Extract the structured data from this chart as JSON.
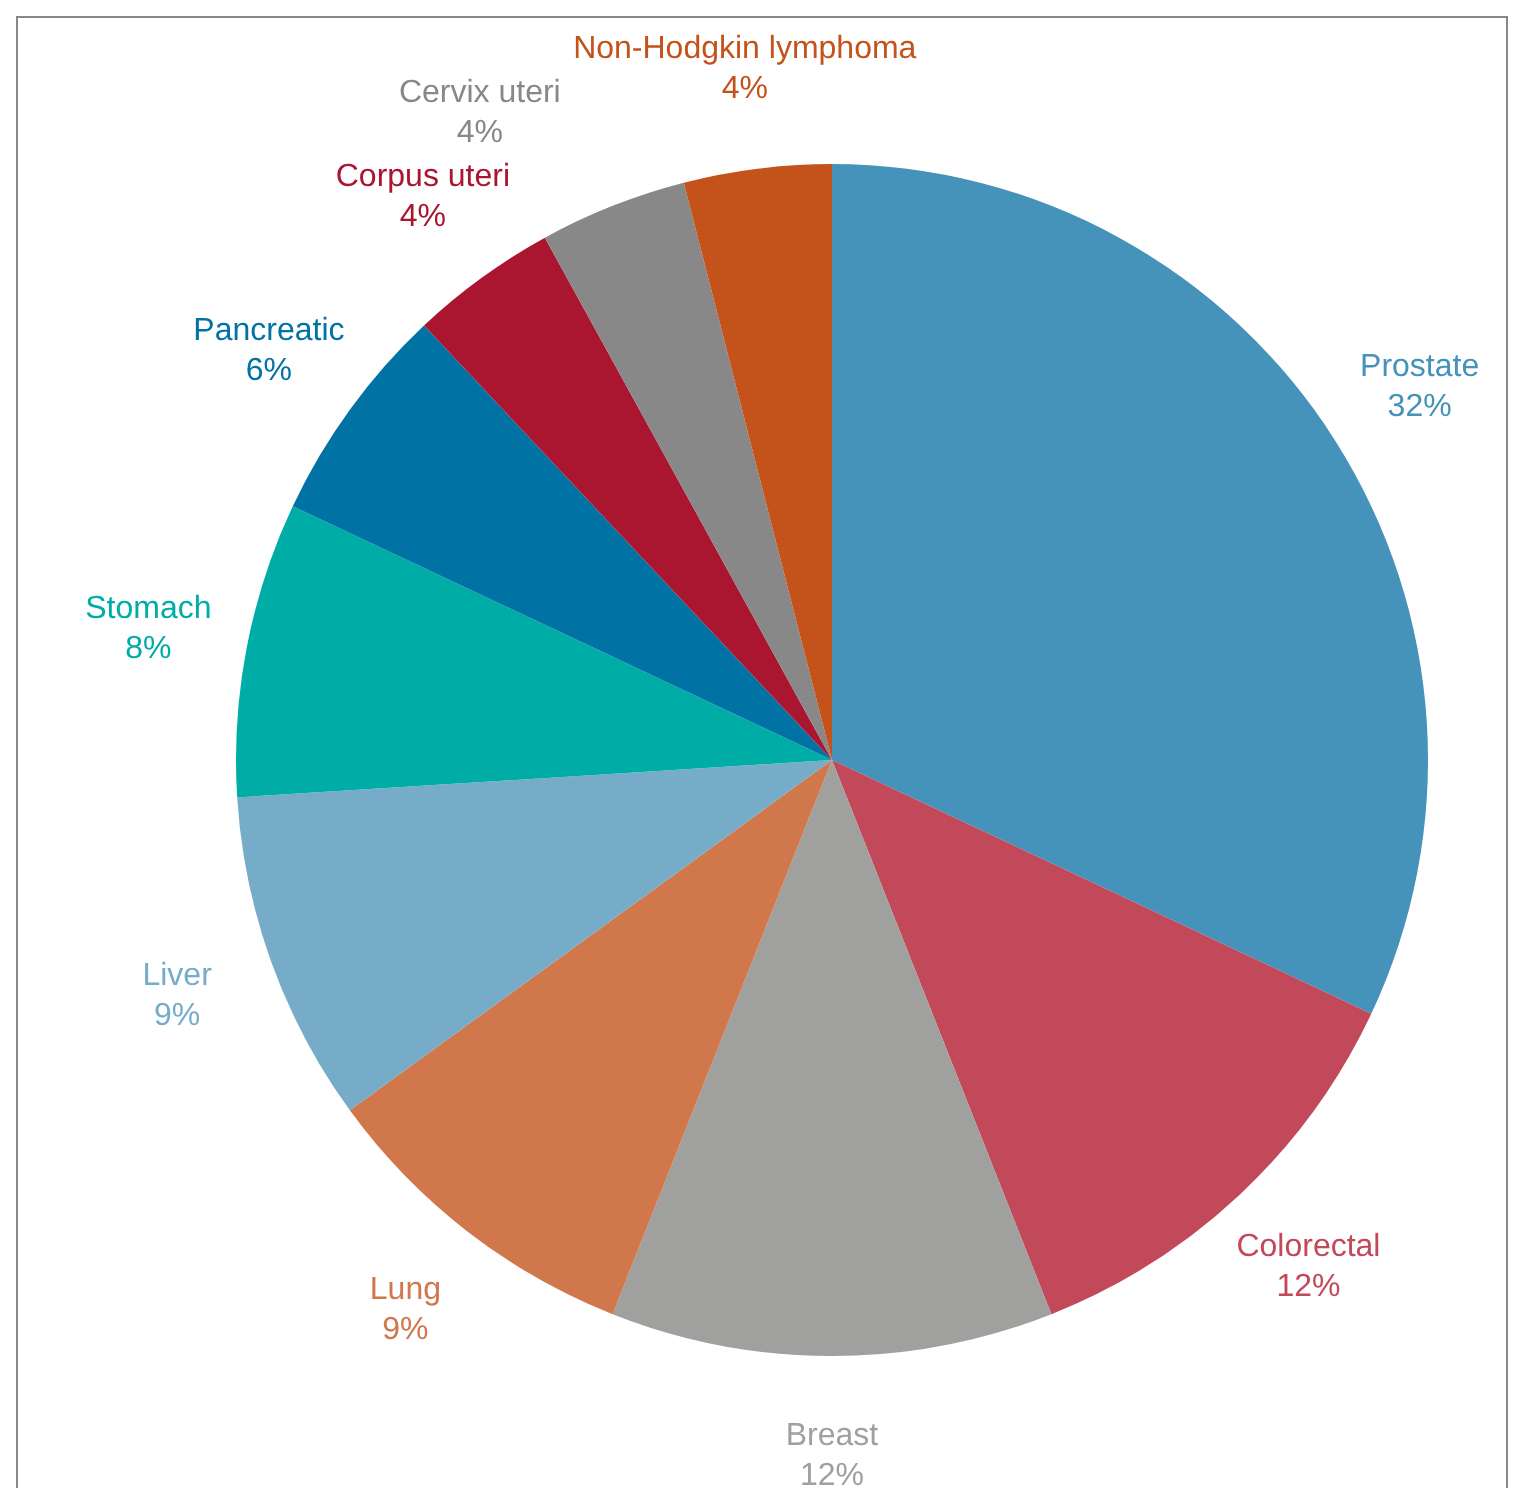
{
  "chart_data": {
    "type": "pie",
    "categories": [
      "Prostate",
      "Colorectal",
      "Breast",
      "Lung",
      "Liver",
      "Stomach",
      "Pancreatic",
      "Corpus uteri",
      "Cervix uteri",
      "Non-Hodgkin lymphoma"
    ],
    "values": [
      32,
      12,
      12,
      9,
      9,
      8,
      6,
      4,
      4,
      4
    ],
    "value_labels": [
      "32%",
      "12%",
      "12%",
      "9%",
      "9%",
      "8%",
      "6%",
      "4%",
      "4%",
      "4%"
    ],
    "colors": [
      "#4592bb",
      "#c2495a",
      "#a0a09e",
      "#d0784c",
      "#77acc9",
      "#00ada6",
      "#0072a4",
      "#aa1630",
      "#888888",
      "#c4531b"
    ],
    "legend": false
  }
}
